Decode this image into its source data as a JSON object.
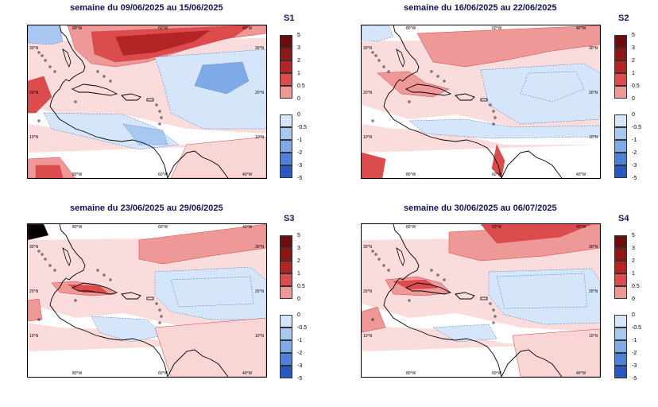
{
  "color_scale": {
    "positive": [
      {
        "label": "5",
        "color": "#6b0d0d"
      },
      {
        "label": "3",
        "color": "#8e1818"
      },
      {
        "label": "2",
        "color": "#b52424"
      },
      {
        "label": "1",
        "color": "#dc4c4c"
      },
      {
        "label": "0.5",
        "color": "#ee9898"
      },
      {
        "label": "0",
        "color": "#f9d6d6"
      }
    ],
    "negative": [
      {
        "label": "0",
        "color": "#d6e6fa"
      },
      {
        "label": "-0.5",
        "color": "#a8c8f2"
      },
      {
        "label": "-1",
        "color": "#7eabe6"
      },
      {
        "label": "-2",
        "color": "#4e82d8"
      },
      {
        "label": "-3",
        "color": "#2a58c2"
      },
      {
        "label": "-5",
        "color": "#1a2e8c"
      }
    ],
    "neutral_color": "#ffffff"
  },
  "axis": {
    "lon_labels": [
      "80°W",
      "60°W",
      "40°W"
    ],
    "lat_labels": [
      "30°N",
      "20°N",
      "10°N"
    ]
  },
  "panels": [
    {
      "id": "S1",
      "title": "semaine du 09/06/2025 au 15/06/2025",
      "tag": "S1"
    },
    {
      "id": "S2",
      "title": "semaine du 16/06/2025 au 22/06/2025",
      "tag": "S2"
    },
    {
      "id": "S3",
      "title": "semaine du 23/06/2025 au 29/06/2025",
      "tag": "S3"
    },
    {
      "id": "S4",
      "title": "semaine du 30/06/2025 au 06/07/2025",
      "tag": "S4"
    }
  ]
}
